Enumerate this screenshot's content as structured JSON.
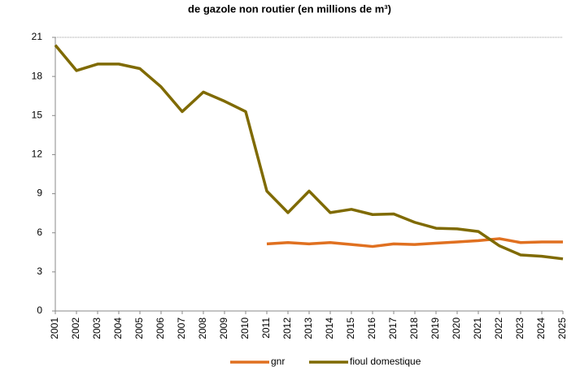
{
  "chart_data": {
    "type": "line",
    "title": "de gazole non routier (en millions de m³)",
    "categories": [
      "2001",
      "2002",
      "2003",
      "2004",
      "2005",
      "2006",
      "2007",
      "2008",
      "2009",
      "2010",
      "2011",
      "2012",
      "2013",
      "2014",
      "2015",
      "2016",
      "2017",
      "2018",
      "2019",
      "2020",
      "2021",
      "2022",
      "2023",
      "2024",
      "2025"
    ],
    "series": [
      {
        "name": "gnr",
        "color": "#e07020",
        "values": [
          null,
          null,
          null,
          null,
          null,
          null,
          null,
          null,
          null,
          null,
          5.15,
          5.25,
          5.15,
          5.25,
          5.1,
          4.95,
          5.15,
          5.1,
          5.2,
          5.3,
          5.4,
          5.55,
          5.25,
          5.3,
          5.3
        ]
      },
      {
        "name": "fioul domestique",
        "color": "#7f6a00",
        "values": [
          20.4,
          18.45,
          18.95,
          18.95,
          18.6,
          17.2,
          15.3,
          16.8,
          16.1,
          15.3,
          9.2,
          7.55,
          9.2,
          7.55,
          7.8,
          7.4,
          7.45,
          6.8,
          6.35,
          6.3,
          6.1,
          5.0,
          4.3,
          4.2,
          4.0
        ]
      }
    ],
    "ylim": [
      0,
      21
    ],
    "yticks": [
      0,
      3,
      6,
      9,
      12,
      15,
      18,
      21
    ],
    "grid": false,
    "legend": "bottom"
  }
}
